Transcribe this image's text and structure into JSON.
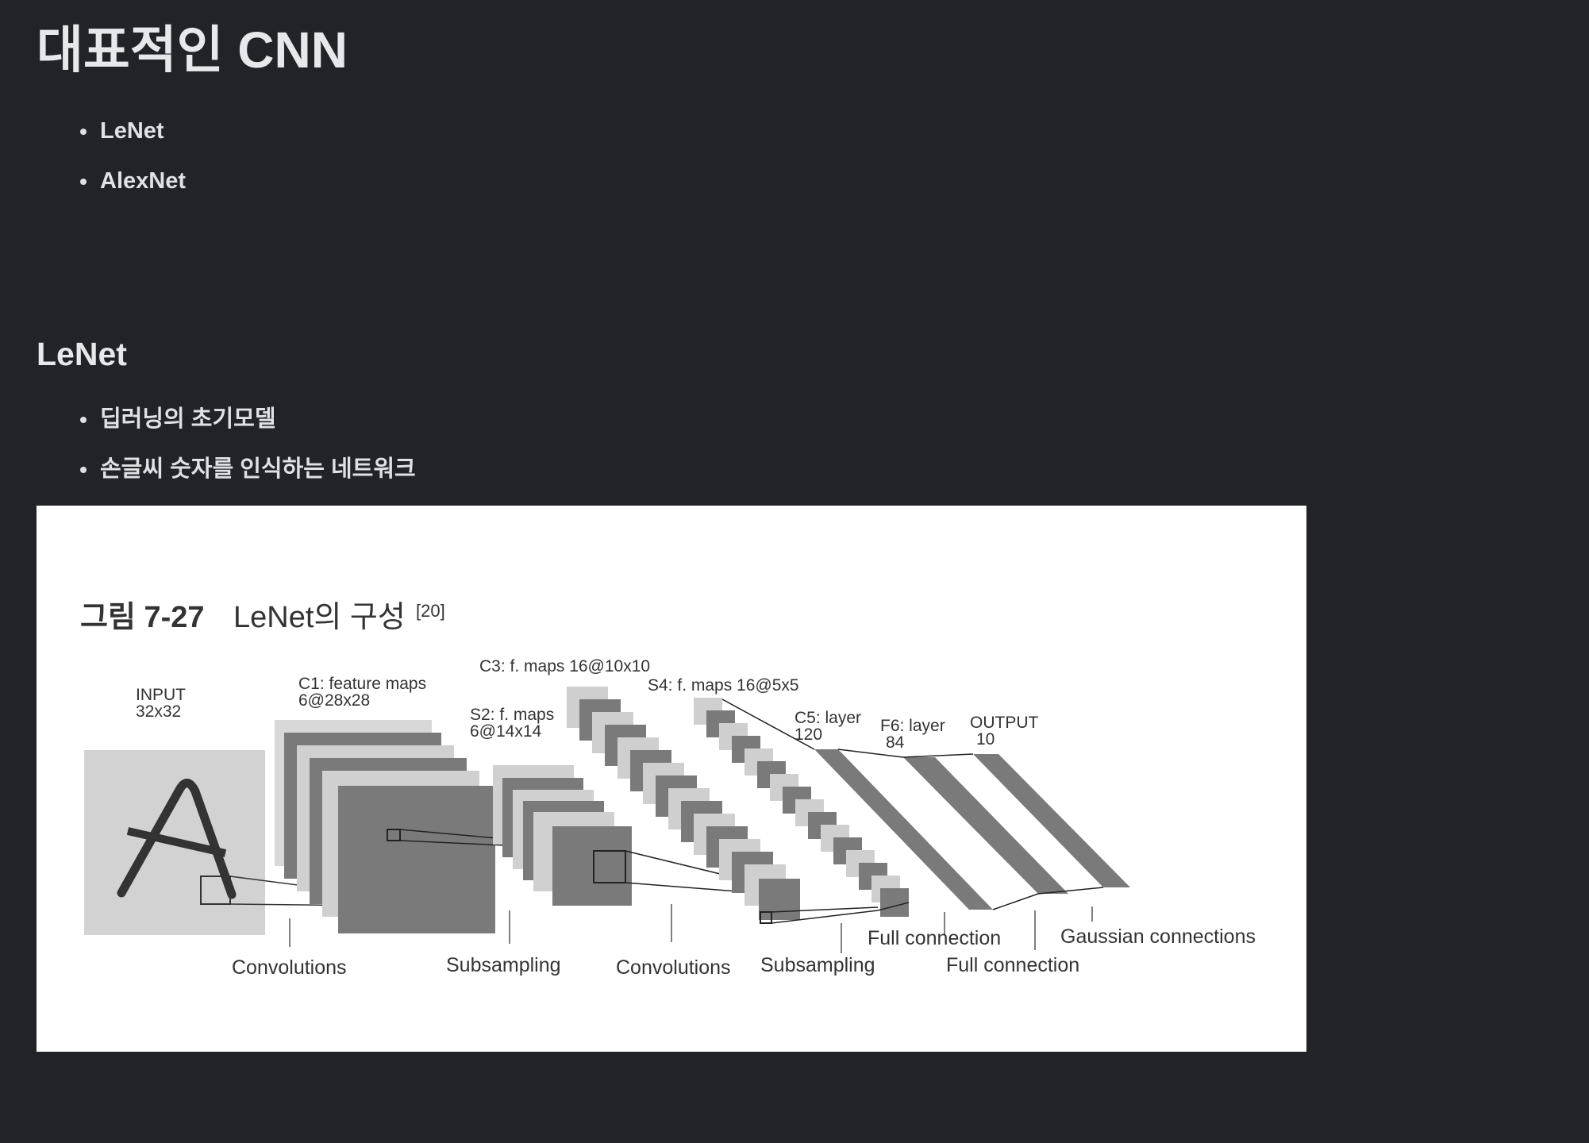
{
  "page_title": "대표적인 CNN",
  "toc_items": [
    "LeNet",
    "AlexNet"
  ],
  "section": {
    "heading": "LeNet",
    "bullets": [
      "딥러닝의 초기모델",
      "손글씨 숫자를 인식하는 네트워크"
    ]
  },
  "figure": {
    "caption_number": "그림 7-27",
    "caption_title": "LeNet의 구성",
    "caption_ref": "[20]",
    "labels": {
      "input": "INPUT",
      "input_size": "32x32",
      "c1": "C1: feature maps",
      "c1_size": "6@28x28",
      "s2": "S2: f. maps",
      "s2_size": "6@14x14",
      "c3": "C3: f. maps 16@10x10",
      "s4": "S4: f. maps 16@5x5",
      "c5": "C5: layer",
      "c5_size": "120",
      "f6": "F6: layer",
      "f6_size": "84",
      "output": "OUTPUT",
      "output_size": "10"
    },
    "operations": {
      "conv1": "Convolutions",
      "sub1": "Subsampling",
      "conv2": "Convolutions",
      "sub2": "Subsampling",
      "full1": "Full connection",
      "full2": "Full connection",
      "gauss": "Gaussian connections"
    }
  }
}
